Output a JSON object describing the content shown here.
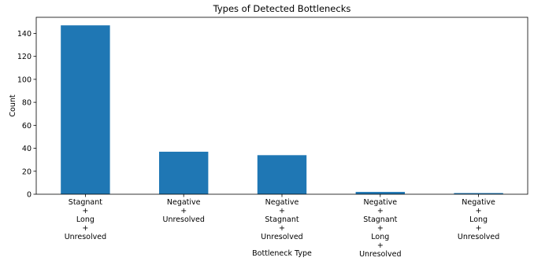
{
  "chart_data": {
    "type": "bar",
    "title": "Types of Detected Bottlenecks",
    "xlabel": "Bottleneck Type",
    "ylabel": "Count",
    "ylim": [
      0,
      154
    ],
    "yticks": [
      0,
      20,
      40,
      60,
      80,
      100,
      120,
      140
    ],
    "grid": false,
    "bar_color": "#1f77b4",
    "categories": [
      [
        "Stagnant",
        "+",
        "Long",
        "+",
        "Unresolved"
      ],
      [
        "Negative",
        "+",
        "Unresolved"
      ],
      [
        "Negative",
        "+",
        "Stagnant",
        "+",
        "Unresolved"
      ],
      [
        "Negative",
        "+",
        "Stagnant",
        "+",
        "Long",
        "+",
        "Unresolved"
      ],
      [
        "Negative",
        "+",
        "Long",
        "+",
        "Unresolved"
      ]
    ],
    "values": [
      147,
      37,
      34,
      2,
      1
    ]
  }
}
